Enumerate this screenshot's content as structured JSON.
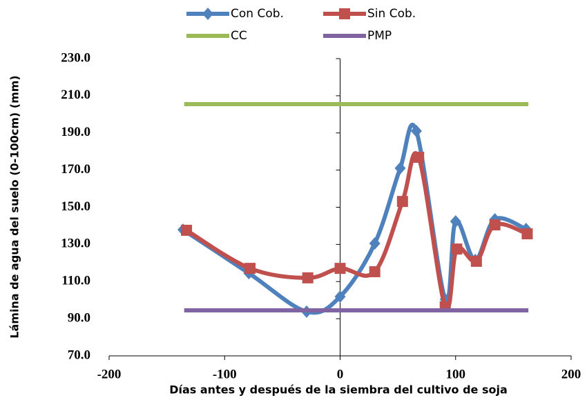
{
  "chart_data": {
    "type": "line",
    "x_label": "Días antes y después de la siembra del cultivo de soja",
    "y_label": "Lámina de agua del suelo (0-100cm) (mm)",
    "xlim": [
      -200,
      200
    ],
    "xticks": [
      -200,
      -100,
      0,
      100,
      200
    ],
    "ylim": [
      70,
      230
    ],
    "yticks": [
      {
        "value": 70,
        "label": "70.0"
      },
      {
        "value": 90,
        "label": "90.0"
      },
      {
        "value": 110,
        "label": "110.0"
      },
      {
        "value": 130,
        "label": "130.0"
      },
      {
        "value": 150,
        "label": "150.0"
      },
      {
        "value": 170,
        "label": "170.0"
      },
      {
        "value": 190,
        "label": "190.0"
      },
      {
        "value": 210,
        "label": "210.0"
      },
      {
        "value": 230,
        "label": "230.0"
      }
    ],
    "series": [
      {
        "name": "Con Cob.",
        "color": "#4f81bd",
        "marker": "diamond",
        "x": [
          -136,
          -79,
          -29,
          0,
          30,
          52,
          66,
          91,
          100,
          117,
          134,
          161
        ],
        "values": [
          137.9,
          114.5,
          93.8,
          101.9,
          130.5,
          171,
          191,
          100.4,
          142.4,
          121.6,
          143.5,
          138.3
        ]
      },
      {
        "name": "Sin Cob.",
        "color": "#c0504d",
        "marker": "square",
        "x": [
          -133,
          -78,
          -28,
          0,
          30,
          54,
          68,
          91,
          101,
          118,
          134,
          162
        ],
        "values": [
          137.6,
          117.1,
          112,
          117.1,
          115.3,
          153.1,
          176.9,
          96.4,
          127.5,
          120.9,
          140.5,
          135.7
        ]
      },
      {
        "name": "CC",
        "color": "#9bbb59",
        "marker": "none",
        "x": [
          -135,
          163
        ],
        "values": [
          205.5,
          205.5
        ]
      },
      {
        "name": "PMP",
        "color": "#8064a2",
        "marker": "none",
        "x": [
          -135,
          163
        ],
        "values": [
          94.5,
          94.5
        ]
      }
    ]
  }
}
